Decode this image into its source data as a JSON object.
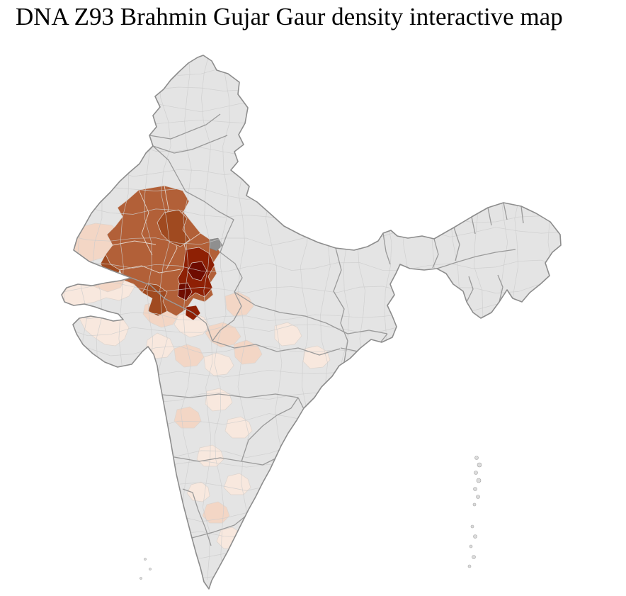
{
  "page": {
    "title": "DNA Z93 Brahmin Gujar Gaur density interactive map",
    "title_color": "#000000",
    "background_color": "#ffffff"
  },
  "map": {
    "palette": {
      "land": "#e4e4e4",
      "coast": "#8d8d8d",
      "state_border": "#9a9a9a",
      "district_border": "#cccccc",
      "district_dark": "#8f8f8f",
      "islands": "#dcdcdc",
      "density_faint": "#f8e8de",
      "density_low": "#f3d6c5",
      "density_mid": "#b26038",
      "density_mid_dark": "#a04a20",
      "density_high": "#8e2004",
      "density_max": "#6f0c00"
    }
  }
}
